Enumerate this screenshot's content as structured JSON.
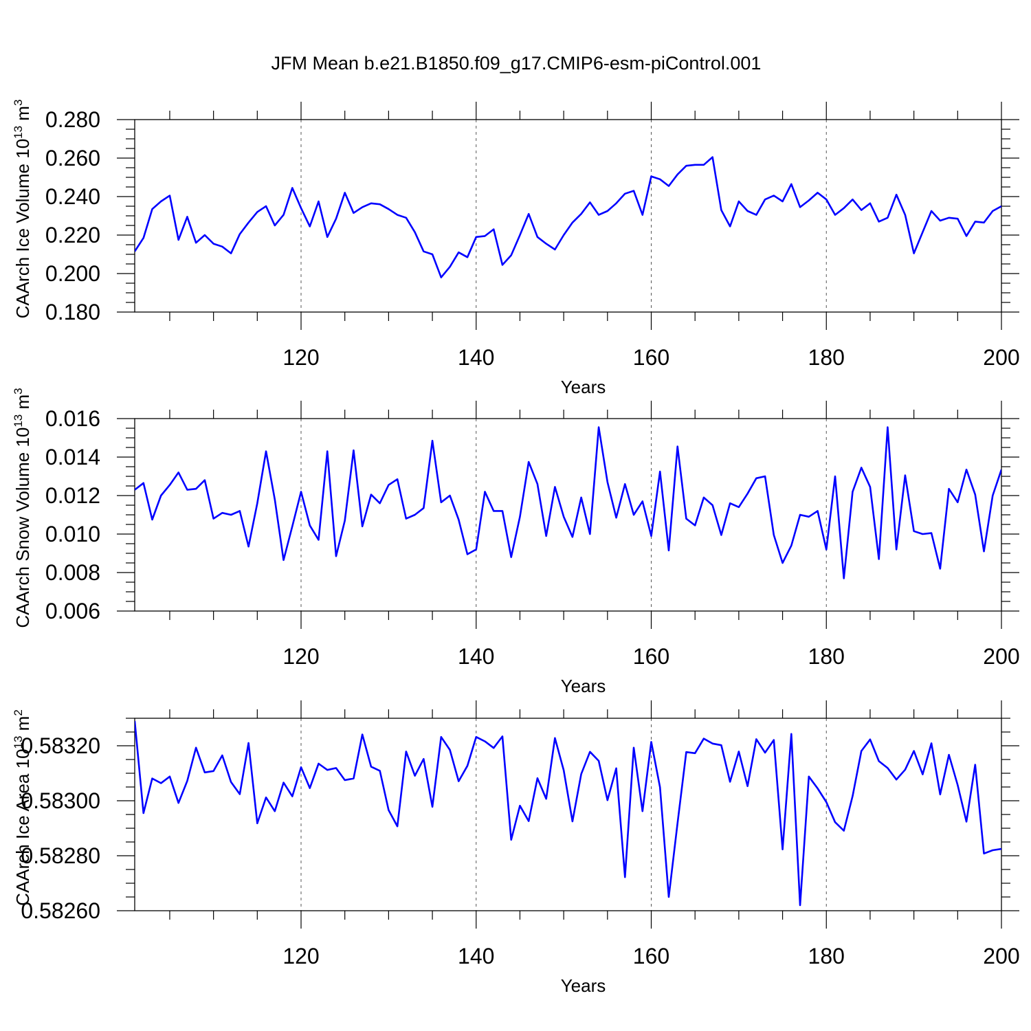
{
  "title": "JFM Mean b.e21.B1850.f09_g17.CMIP6-esm-piControl.001",
  "colors": {
    "series": "#0000ff",
    "axis": "#000000",
    "grid": "#555555"
  },
  "chart_data": [
    {
      "type": "line",
      "ylabel_main": "CAArch Ice Volume 10",
      "ylabel_exp": "13",
      "ylabel_unit": " m",
      "ylabel_unit_exp": "3",
      "xlabel": "Years",
      "xlim": [
        101,
        200
      ],
      "ylim": [
        0.18,
        0.28
      ],
      "yticks": [
        0.18,
        0.2,
        0.22,
        0.24,
        0.26,
        0.28
      ],
      "ytick_labels": [
        "0.180",
        "0.200",
        "0.220",
        "0.240",
        "0.260",
        "0.280"
      ],
      "xticks": [
        120,
        140,
        160,
        180,
        200
      ],
      "xtick_labels": [
        "120",
        "140",
        "160",
        "180",
        "200"
      ],
      "grid_x": [
        120,
        140,
        160,
        180
      ],
      "x": [
        101,
        102,
        103,
        104,
        105,
        106,
        107,
        108,
        109,
        110,
        111,
        112,
        113,
        114,
        115,
        116,
        117,
        118,
        119,
        120,
        121,
        122,
        123,
        124,
        125,
        126,
        127,
        128,
        129,
        130,
        131,
        132,
        133,
        134,
        135,
        136,
        137,
        138,
        139,
        140,
        141,
        142,
        143,
        144,
        145,
        146,
        147,
        148,
        149,
        150,
        151,
        152,
        153,
        154,
        155,
        156,
        157,
        158,
        159,
        160,
        161,
        162,
        163,
        164,
        165,
        166,
        167,
        168,
        169,
        170,
        171,
        172,
        173,
        174,
        175,
        176,
        177,
        178,
        179,
        180,
        181,
        182,
        183,
        184,
        185,
        186,
        187,
        188,
        189,
        190,
        191,
        192,
        193,
        194,
        195,
        196,
        197,
        198,
        199,
        200
      ],
      "y": [
        0.2115,
        0.2185,
        0.2335,
        0.2375,
        0.2405,
        0.2175,
        0.2295,
        0.216,
        0.22,
        0.2155,
        0.214,
        0.2105,
        0.2205,
        0.2265,
        0.232,
        0.235,
        0.225,
        0.2305,
        0.2445,
        0.234,
        0.2245,
        0.2375,
        0.219,
        0.2285,
        0.242,
        0.2315,
        0.2345,
        0.2365,
        0.236,
        0.2335,
        0.2305,
        0.229,
        0.2215,
        0.2115,
        0.21,
        0.198,
        0.2035,
        0.211,
        0.2085,
        0.219,
        0.2195,
        0.223,
        0.2045,
        0.2095,
        0.22,
        0.231,
        0.219,
        0.2155,
        0.2125,
        0.22,
        0.2265,
        0.231,
        0.237,
        0.2305,
        0.2325,
        0.2365,
        0.2415,
        0.243,
        0.2305,
        0.2505,
        0.249,
        0.2455,
        0.2515,
        0.256,
        0.2565,
        0.2565,
        0.2605,
        0.233,
        0.2245,
        0.2375,
        0.2325,
        0.2305,
        0.2385,
        0.2405,
        0.2375,
        0.2465,
        0.2345,
        0.238,
        0.242,
        0.2385,
        0.2305,
        0.234,
        0.2385,
        0.233,
        0.2365,
        0.227,
        0.229,
        0.241,
        0.2305,
        0.2105,
        0.2215,
        0.2325,
        0.2275,
        0.229,
        0.2285,
        0.2195,
        0.227,
        0.2265,
        0.2325,
        0.235
      ]
    },
    {
      "type": "line",
      "ylabel_main": "CAArch Snow Volume 10",
      "ylabel_exp": "13",
      "ylabel_unit": " m",
      "ylabel_unit_exp": "3",
      "xlabel": "Years",
      "xlim": [
        101,
        200
      ],
      "ylim": [
        0.006,
        0.016
      ],
      "yticks": [
        0.006,
        0.008,
        0.01,
        0.012,
        0.014,
        0.016
      ],
      "ytick_labels": [
        "0.006",
        "0.008",
        "0.010",
        "0.012",
        "0.014",
        "0.016"
      ],
      "xticks": [
        120,
        140,
        160,
        180,
        200
      ],
      "xtick_labels": [
        "120",
        "140",
        "160",
        "180",
        "200"
      ],
      "grid_x": [
        120,
        140,
        160,
        180
      ],
      "x": [
        101,
        102,
        103,
        104,
        105,
        106,
        107,
        108,
        109,
        110,
        111,
        112,
        113,
        114,
        115,
        116,
        117,
        118,
        119,
        120,
        121,
        122,
        123,
        124,
        125,
        126,
        127,
        128,
        129,
        130,
        131,
        132,
        133,
        134,
        135,
        136,
        137,
        138,
        139,
        140,
        141,
        142,
        143,
        144,
        145,
        146,
        147,
        148,
        149,
        150,
        151,
        152,
        153,
        154,
        155,
        156,
        157,
        158,
        159,
        160,
        161,
        162,
        163,
        164,
        165,
        166,
        167,
        168,
        169,
        170,
        171,
        172,
        173,
        174,
        175,
        176,
        177,
        178,
        179,
        180,
        181,
        182,
        183,
        184,
        185,
        186,
        187,
        188,
        189,
        190,
        191,
        192,
        193,
        194,
        195,
        196,
        197,
        198,
        199,
        200
      ],
      "y": [
        0.0123,
        0.01265,
        0.01075,
        0.012,
        0.01255,
        0.0132,
        0.0123,
        0.01235,
        0.0128,
        0.0108,
        0.0111,
        0.011,
        0.0112,
        0.00935,
        0.0116,
        0.0143,
        0.0118,
        0.00865,
        0.0104,
        0.0122,
        0.01045,
        0.0097,
        0.0143,
        0.00885,
        0.0107,
        0.01435,
        0.0104,
        0.01205,
        0.0116,
        0.01255,
        0.01285,
        0.0108,
        0.011,
        0.01135,
        0.01485,
        0.01165,
        0.012,
        0.01075,
        0.00895,
        0.0092,
        0.0122,
        0.0112,
        0.0112,
        0.0088,
        0.0109,
        0.01375,
        0.0126,
        0.0099,
        0.01245,
        0.0109,
        0.00985,
        0.0119,
        0.01,
        0.01555,
        0.0127,
        0.01085,
        0.0126,
        0.011,
        0.0117,
        0.0099,
        0.01325,
        0.00915,
        0.01455,
        0.0108,
        0.01045,
        0.0119,
        0.0115,
        0.00995,
        0.0116,
        0.0114,
        0.0121,
        0.0129,
        0.013,
        0.00995,
        0.0085,
        0.0094,
        0.011,
        0.0109,
        0.0112,
        0.0092,
        0.013,
        0.0077,
        0.0122,
        0.01345,
        0.01245,
        0.0087,
        0.01555,
        0.0092,
        0.01305,
        0.01015,
        0.01,
        0.01005,
        0.0082,
        0.01235,
        0.01165,
        0.01335,
        0.01205,
        0.0091,
        0.012,
        0.01335
      ]
    },
    {
      "type": "line",
      "ylabel_main": "CAArch Ice Area 10",
      "ylabel_exp": "13",
      "ylabel_unit": " m",
      "ylabel_unit_exp": "2",
      "xlabel": "Years",
      "xlim": [
        101,
        200
      ],
      "ylim": [
        0.5826,
        0.5833
      ],
      "yticks": [
        0.5826,
        0.5828,
        0.583,
        0.5832
      ],
      "ytick_labels": [
        "0.58260",
        "0.58280",
        "0.58300",
        "0.58320"
      ],
      "xticks": [
        120,
        140,
        160,
        180,
        200
      ],
      "xtick_labels": [
        "120",
        "140",
        "160",
        "180",
        "200"
      ],
      "grid_x": [
        120,
        140,
        160,
        180
      ],
      "x": [
        101,
        102,
        103,
        104,
        105,
        106,
        107,
        108,
        109,
        110,
        111,
        112,
        113,
        114,
        115,
        116,
        117,
        118,
        119,
        120,
        121,
        122,
        123,
        124,
        125,
        126,
        127,
        128,
        129,
        130,
        131,
        132,
        133,
        134,
        135,
        136,
        137,
        138,
        139,
        140,
        141,
        142,
        143,
        144,
        145,
        146,
        147,
        148,
        149,
        150,
        151,
        152,
        153,
        154,
        155,
        156,
        157,
        158,
        159,
        160,
        161,
        162,
        163,
        164,
        165,
        166,
        167,
        168,
        169,
        170,
        171,
        172,
        173,
        174,
        175,
        176,
        177,
        178,
        179,
        180,
        181,
        182,
        183,
        184,
        185,
        186,
        187,
        188,
        189,
        190,
        191,
        192,
        193,
        194,
        195,
        196,
        197,
        198,
        199,
        200
      ],
      "y": [
        0.58329,
        0.582955,
        0.583081,
        0.583064,
        0.583088,
        0.582992,
        0.583072,
        0.583193,
        0.583103,
        0.583108,
        0.583165,
        0.583068,
        0.583024,
        0.58321,
        0.582918,
        0.583012,
        0.582962,
        0.583066,
        0.583016,
        0.583122,
        0.583046,
        0.583135,
        0.583112,
        0.583119,
        0.583075,
        0.583081,
        0.583241,
        0.583124,
        0.583109,
        0.582966,
        0.582907,
        0.583179,
        0.583091,
        0.583152,
        0.582978,
        0.583232,
        0.583185,
        0.583071,
        0.583127,
        0.583232,
        0.583216,
        0.583192,
        0.583234,
        0.582858,
        0.582982,
        0.582926,
        0.583082,
        0.583007,
        0.583228,
        0.583111,
        0.582925,
        0.583097,
        0.583178,
        0.583145,
        0.583002,
        0.583118,
        0.582722,
        0.583193,
        0.582962,
        0.583214,
        0.583049,
        0.58265,
        0.582918,
        0.583177,
        0.583173,
        0.583226,
        0.583208,
        0.583202,
        0.583069,
        0.583179,
        0.583053,
        0.583224,
        0.583175,
        0.583221,
        0.582823,
        0.583243,
        0.58262,
        0.583088,
        0.583045,
        0.582995,
        0.582922,
        0.582891,
        0.583017,
        0.583181,
        0.583223,
        0.583144,
        0.583119,
        0.583077,
        0.583113,
        0.583181,
        0.583096,
        0.583209,
        0.583023,
        0.583167,
        0.583057,
        0.582924,
        0.583131,
        0.582808,
        0.58282,
        0.582825
      ]
    }
  ]
}
